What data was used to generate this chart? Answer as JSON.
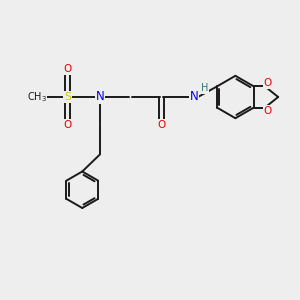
{
  "background_color": "#eeeeee",
  "bond_color": "#1a1a1a",
  "atom_colors": {
    "N": "#0000ee",
    "O": "#ee0000",
    "S": "#cccc00",
    "H": "#337777",
    "C": "#1a1a1a"
  },
  "figsize": [
    3.0,
    3.0
  ],
  "dpi": 100
}
